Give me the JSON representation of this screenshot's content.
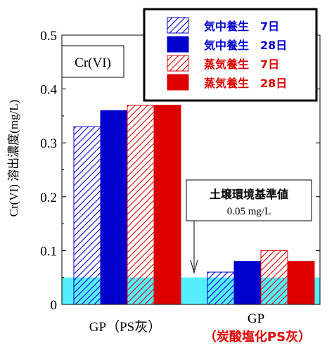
{
  "chart_data": {
    "type": "bar",
    "title": "Cr(VI)",
    "ylabel": "Cr(VI) 溶出濃度(mg/L)",
    "ylim": [
      0,
      0.5
    ],
    "yticks": [
      "0",
      "0.1",
      "0.2",
      "0.3",
      "0.4",
      "0.5"
    ],
    "grid": false,
    "legend_position": "top-right",
    "categories": [
      {
        "label": "GP",
        "sub": "（PS灰）",
        "sub_color": "#000000"
      },
      {
        "label": "GP",
        "sub": "（炭酸塩化PS灰）",
        "sub_color": "#dd0000"
      }
    ],
    "series": [
      {
        "name": "気中養生　7日",
        "values": [
          0.33,
          0.06
        ],
        "color": "#0000cc",
        "pattern": "hatch"
      },
      {
        "name": "気中養生　28日",
        "values": [
          0.36,
          0.08
        ],
        "color": "#0000cc",
        "pattern": "solid"
      },
      {
        "name": "蒸気養生　7日",
        "values": [
          0.37,
          0.1
        ],
        "color": "#dd0000",
        "pattern": "hatch"
      },
      {
        "name": "蒸気養生　28日",
        "values": [
          0.37,
          0.08
        ],
        "color": "#dd0000",
        "pattern": "solid"
      }
    ],
    "reference": {
      "value": 0.05,
      "label": "土壌環境基準値",
      "value_label": "0.05 mg/L",
      "color": "#55eeff"
    }
  }
}
